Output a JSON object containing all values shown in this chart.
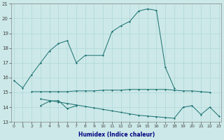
{
  "xlabel": "Humidex (Indice chaleur)",
  "line_color": "#1a7070",
  "bg_color": "#cce8e8",
  "grid_color": "#b0d8d8",
  "ylim": [
    13,
    21
  ],
  "xlim": [
    -0.3,
    23.3
  ],
  "yticks": [
    13,
    14,
    15,
    16,
    17,
    18,
    19,
    20,
    21
  ],
  "xticks": [
    0,
    1,
    2,
    3,
    4,
    5,
    6,
    7,
    8,
    9,
    10,
    11,
    12,
    13,
    14,
    15,
    16,
    17,
    18,
    19,
    20,
    21,
    22,
    23
  ],
  "curve_arch_x": [
    0,
    1,
    2,
    3,
    4,
    5,
    6,
    7,
    8,
    10,
    11,
    12,
    13,
    14,
    15,
    16,
    17,
    18
  ],
  "curve_arch_y": [
    15.8,
    15.3,
    16.2,
    17.0,
    17.8,
    18.3,
    18.5,
    17.0,
    17.5,
    17.5,
    19.1,
    19.5,
    19.8,
    20.5,
    20.65,
    20.55,
    16.7,
    15.3
  ],
  "curve_flat_x": [
    2,
    3,
    4,
    5,
    6,
    7,
    8,
    9,
    10,
    11,
    12,
    13,
    14,
    15,
    16,
    17,
    18,
    19,
    20,
    21,
    22
  ],
  "curve_flat_y": [
    15.05,
    15.05,
    15.05,
    15.05,
    15.05,
    15.1,
    15.1,
    15.1,
    15.15,
    15.15,
    15.15,
    15.2,
    15.2,
    15.2,
    15.2,
    15.2,
    15.15,
    15.1,
    15.1,
    15.05,
    15.0
  ],
  "curve_decline_x": [
    3,
    4,
    5,
    6,
    7,
    8,
    9,
    10,
    11,
    12,
    13,
    14,
    15,
    16,
    17,
    18,
    19,
    20,
    21,
    22,
    23
  ],
  "curve_decline_y": [
    14.55,
    14.45,
    14.35,
    14.25,
    14.15,
    14.05,
    13.95,
    13.85,
    13.75,
    13.65,
    13.55,
    13.45,
    13.4,
    13.35,
    13.3,
    13.25,
    14.0,
    14.1,
    13.5,
    14.0,
    13.4
  ],
  "curve_small_x": [
    3,
    4,
    5,
    6,
    7
  ],
  "curve_small_y": [
    14.1,
    14.4,
    14.45,
    13.9,
    14.1
  ],
  "xlabel_color": "#000080",
  "xlabel_fontsize": 5.5,
  "tick_fontsize": 4.5,
  "ytick_fontsize": 5.0,
  "linewidth": 0.7,
  "markersize": 1.5
}
